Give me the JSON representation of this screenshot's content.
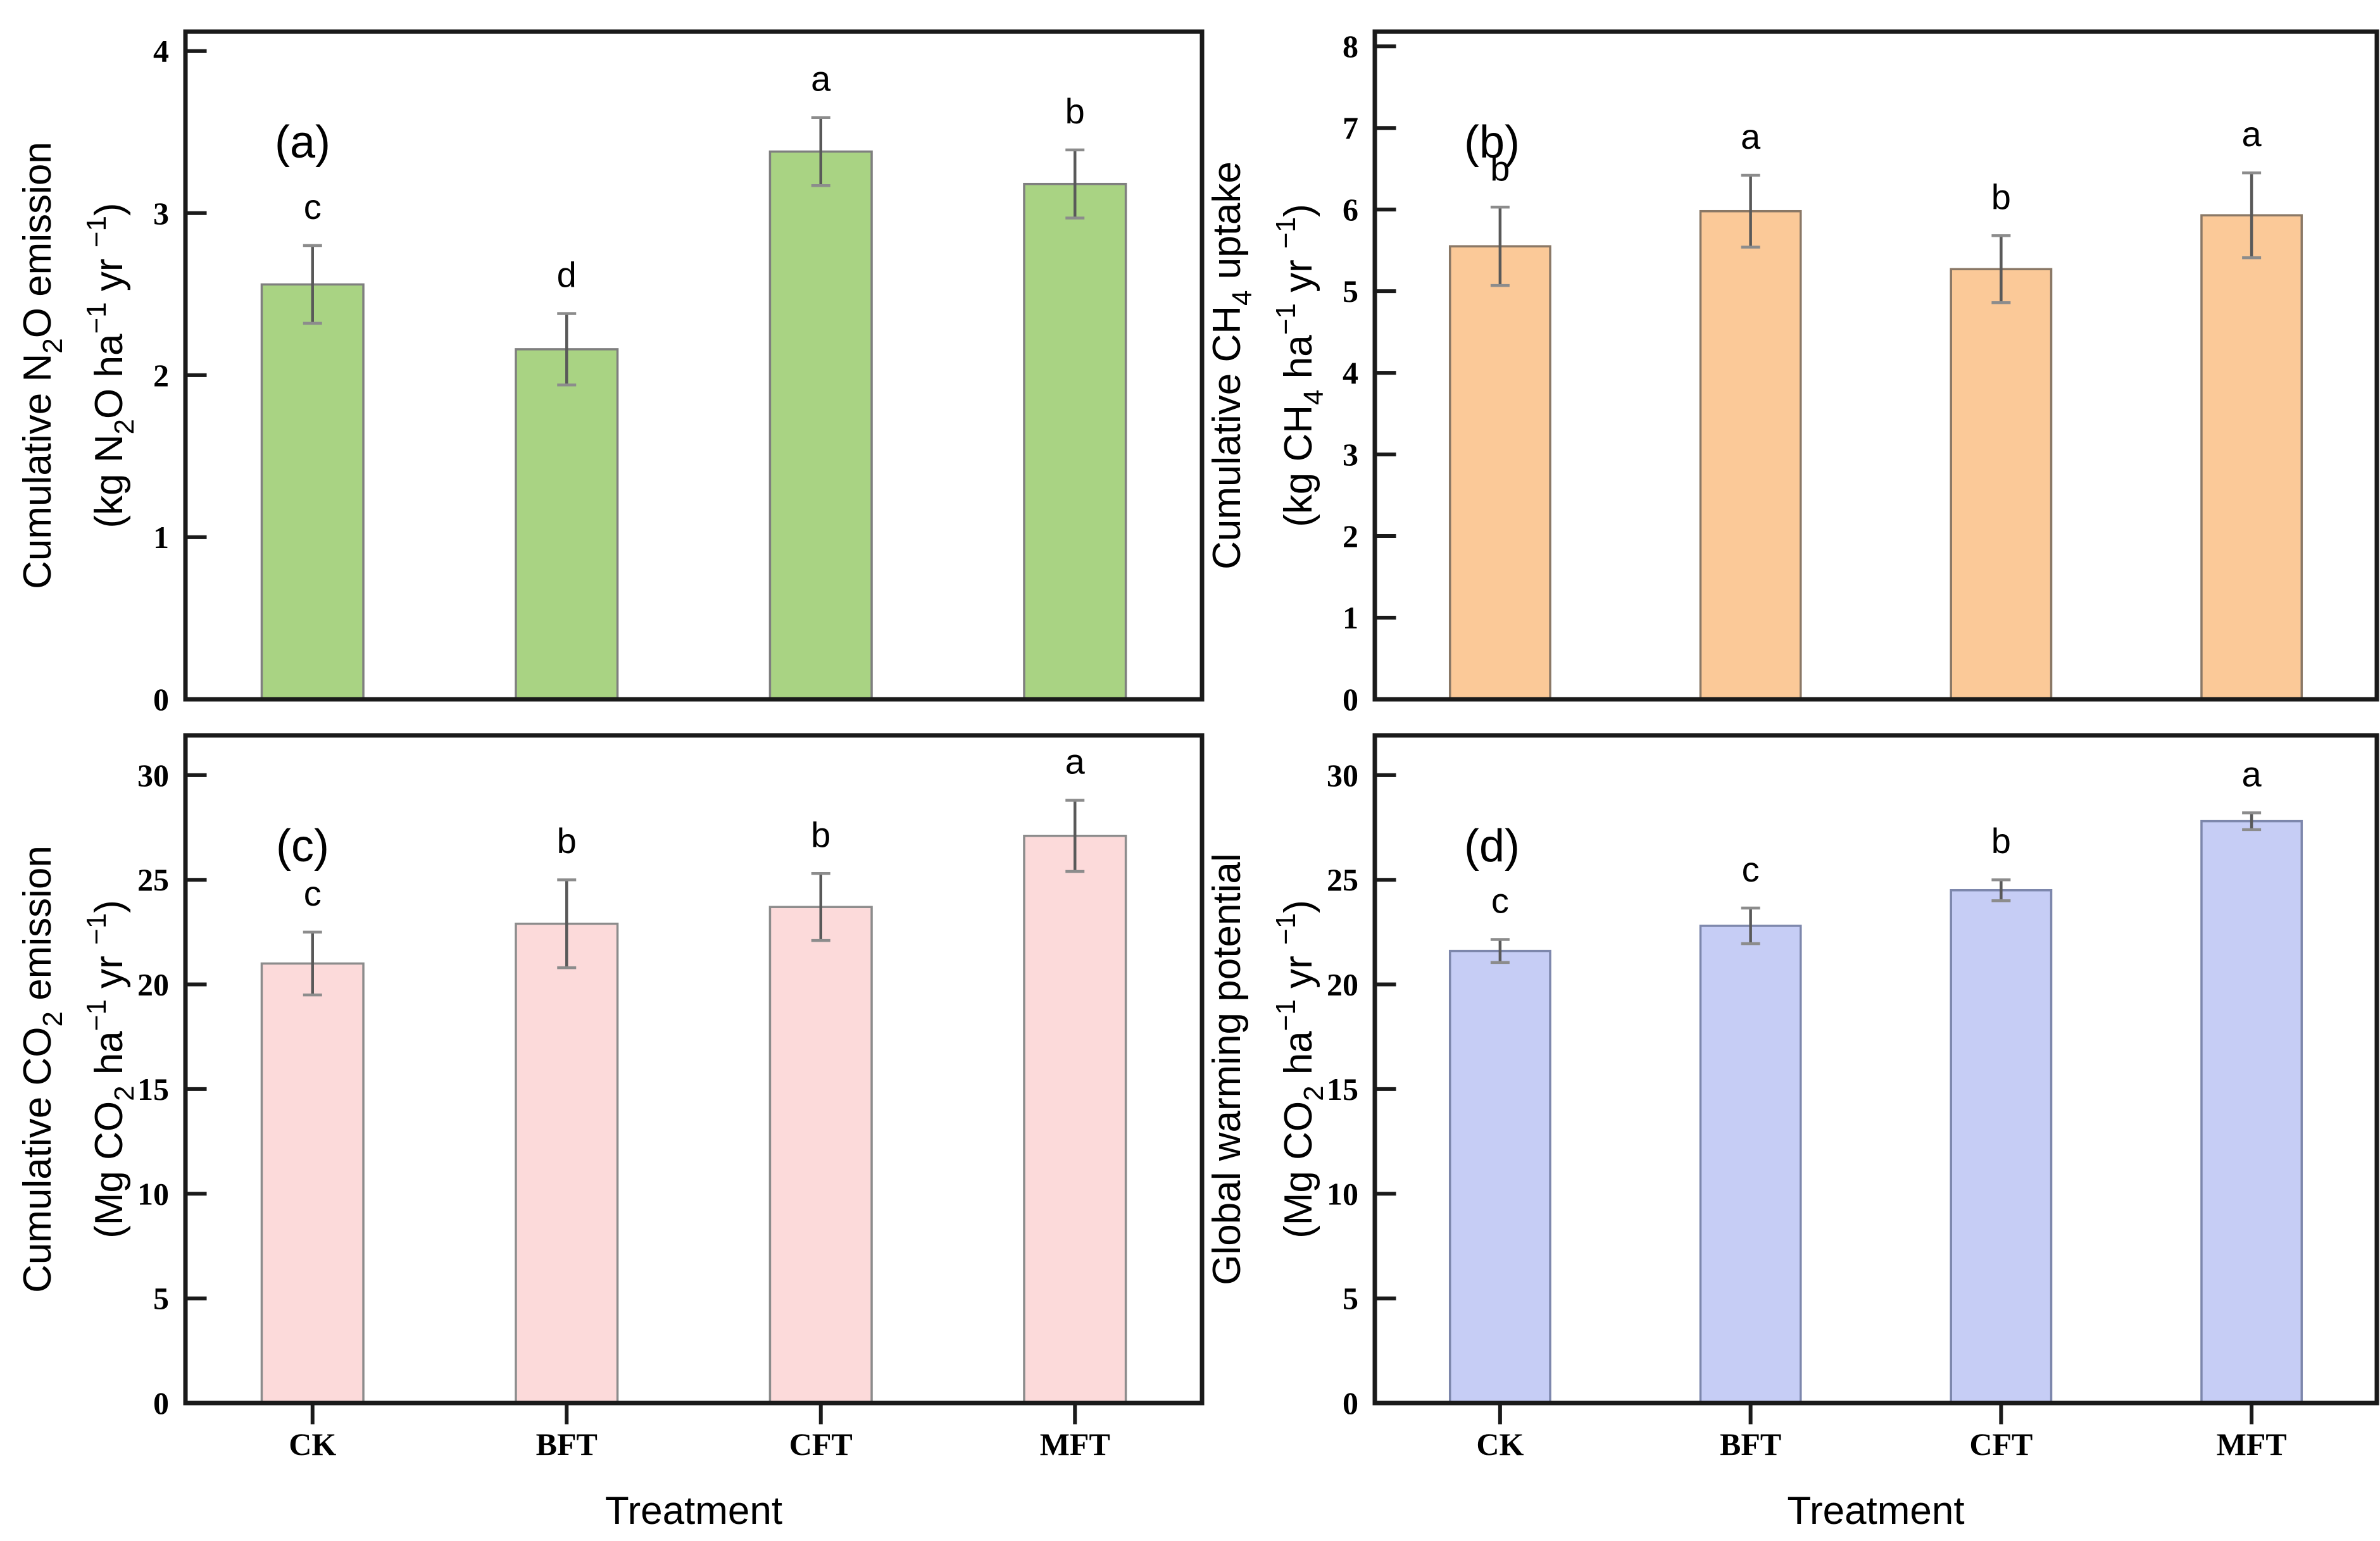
{
  "x_axis": {
    "label": "Treatment",
    "categories": [
      "CK",
      "BFT",
      "CFT",
      "MFT"
    ]
  },
  "background": "#ffffff",
  "chart_data": [
    {
      "id": "a",
      "type": "bar",
      "panel_letter": "(a)",
      "ylabel_line1": [
        {
          "t": "Cumulative N"
        },
        {
          "t": "2",
          "s": "sub"
        },
        {
          "t": "O emission"
        }
      ],
      "ylabel_line2": [
        {
          "t": "(kg N"
        },
        {
          "t": "2",
          "s": "sub"
        },
        {
          "t": "O ha"
        },
        {
          "t": "−1",
          "s": "sup"
        },
        {
          "t": " yr "
        },
        {
          "t": "−1",
          "s": "sup"
        },
        {
          "t": ")"
        }
      ],
      "ylim": [
        0,
        4.12
      ],
      "yticks": [
        0,
        1,
        2,
        3,
        4
      ],
      "categories": [
        "CK",
        "BFT",
        "CFT",
        "MFT"
      ],
      "values": [
        2.56,
        2.16,
        3.38,
        3.18
      ],
      "errors": [
        0.24,
        0.22,
        0.21,
        0.21
      ],
      "sig_letters": [
        "c",
        "d",
        "a",
        "b"
      ],
      "bar_fill": "#a9d383",
      "bar_stroke": "#7f7f7f",
      "error_color": "#595959"
    },
    {
      "id": "b",
      "type": "bar",
      "panel_letter": "(b)",
      "ylabel_line1": [
        {
          "t": "Cumulative CH"
        },
        {
          "t": "4",
          "s": "sub"
        },
        {
          "t": " uptake"
        }
      ],
      "ylabel_line2": [
        {
          "t": "(kg CH"
        },
        {
          "t": "4",
          "s": "sub"
        },
        {
          "t": " ha"
        },
        {
          "t": "−1",
          "s": "sup"
        },
        {
          "t": " yr "
        },
        {
          "t": "−1",
          "s": "sup"
        },
        {
          "t": ")"
        }
      ],
      "ylim": [
        0,
        8.18
      ],
      "yticks": [
        0,
        1,
        2,
        3,
        4,
        5,
        6,
        7,
        8
      ],
      "categories": [
        "CK",
        "BFT",
        "CFT",
        "MFT"
      ],
      "values": [
        5.55,
        5.98,
        5.27,
        5.93
      ],
      "errors": [
        0.48,
        0.44,
        0.41,
        0.52
      ],
      "sig_letters": [
        "b",
        "a",
        "b",
        "a"
      ],
      "bar_fill": "#fbc998",
      "bar_stroke": "#8a7866",
      "error_color": "#595959"
    },
    {
      "id": "c",
      "type": "bar",
      "panel_letter": "(c)",
      "ylabel_line1": [
        {
          "t": "Cumulative CO"
        },
        {
          "t": "2",
          "s": "sub"
        },
        {
          "t": " emission"
        }
      ],
      "ylabel_line2": [
        {
          "t": "(Mg CO"
        },
        {
          "t": "2",
          "s": "sub"
        },
        {
          "t": " ha"
        },
        {
          "t": "−1",
          "s": "sup"
        },
        {
          "t": " yr "
        },
        {
          "t": "−1",
          "s": "sup"
        },
        {
          "t": ")"
        }
      ],
      "ylim": [
        0,
        31.9
      ],
      "yticks": [
        0,
        5,
        10,
        15,
        20,
        25,
        30
      ],
      "categories": [
        "CK",
        "BFT",
        "CFT",
        "MFT"
      ],
      "values": [
        21.0,
        22.9,
        23.7,
        27.1
      ],
      "errors": [
        1.5,
        2.1,
        1.6,
        1.7
      ],
      "sig_letters": [
        "c",
        "b",
        "b",
        "a"
      ],
      "bar_fill": "#fcdada",
      "bar_stroke": "#8c8c8c",
      "error_color": "#595959"
    },
    {
      "id": "d",
      "type": "bar",
      "panel_letter": "(d)",
      "ylabel_line1": [
        {
          "t": "Global warming potential"
        }
      ],
      "ylabel_line2": [
        {
          "t": "(Mg CO"
        },
        {
          "t": "2",
          "s": "sub"
        },
        {
          "t": " ha"
        },
        {
          "t": "−1",
          "s": "sup"
        },
        {
          "t": " yr "
        },
        {
          "t": "−1",
          "s": "sup"
        },
        {
          "t": ")"
        }
      ],
      "ylim": [
        0,
        31.9
      ],
      "yticks": [
        0,
        5,
        10,
        15,
        20,
        25,
        30
      ],
      "categories": [
        "CK",
        "BFT",
        "CFT",
        "MFT"
      ],
      "values": [
        21.6,
        22.8,
        24.5,
        27.8
      ],
      "errors": [
        0.55,
        0.85,
        0.5,
        0.4
      ],
      "sig_letters": [
        "c",
        "c",
        "b",
        "a"
      ],
      "bar_fill": "#c6cdf5",
      "bar_stroke": "#7d87ac",
      "error_color": "#595959"
    }
  ]
}
